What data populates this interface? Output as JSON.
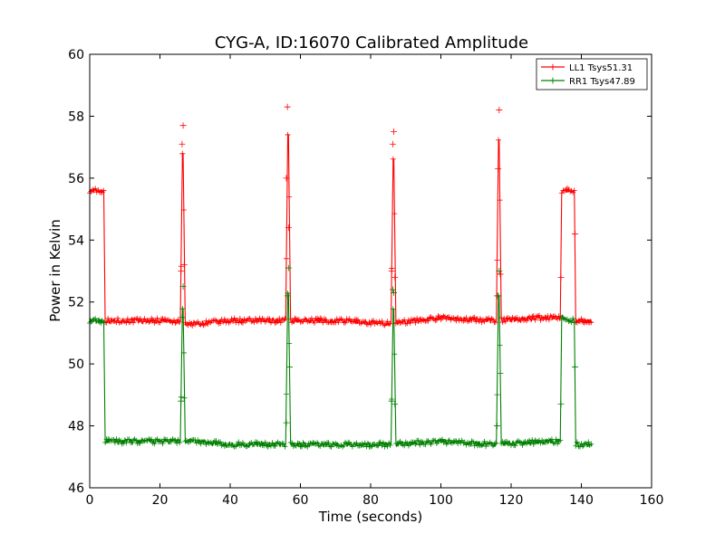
{
  "chart_data": {
    "type": "line",
    "title": "CYG-A, ID:16070 Calibrated Amplitude",
    "xlabel": "Time (seconds)",
    "ylabel": "Power in Kelvin",
    "xlim": [
      0,
      160
    ],
    "ylim": [
      46,
      60
    ],
    "xticks": [
      "0",
      "20",
      "40",
      "60",
      "80",
      "100",
      "120",
      "140",
      "160"
    ],
    "yticks": [
      "46",
      "48",
      "50",
      "52",
      "54",
      "56",
      "58",
      "60"
    ],
    "grid": false,
    "legend_position": "top-right",
    "marker": "+",
    "series": [
      {
        "name": "LL1 Tsys51.31",
        "color": "#ff0000",
        "baseline": [
          [
            0,
            55.6
          ],
          [
            4,
            55.6
          ],
          [
            4.4,
            51.4
          ],
          [
            20,
            51.4
          ],
          [
            30,
            51.3
          ],
          [
            40,
            51.4
          ],
          [
            55,
            51.4
          ],
          [
            70,
            51.4
          ],
          [
            85,
            51.3
          ],
          [
            100,
            51.5
          ],
          [
            115,
            51.4
          ],
          [
            130,
            51.5
          ],
          [
            134,
            51.5
          ],
          [
            134.4,
            55.6
          ],
          [
            138,
            55.6
          ],
          [
            138.4,
            51.4
          ],
          [
            143,
            51.4
          ]
        ],
        "peaks": [
          [
            26.5,
            57.7
          ],
          [
            56.5,
            58.4
          ],
          [
            86.5,
            57.5
          ],
          [
            116.5,
            58.2
          ]
        ],
        "markers": [
          [
            26.0,
            53.0
          ],
          [
            26.3,
            57.1
          ],
          [
            26.6,
            57.7
          ],
          [
            26.9,
            53.2
          ],
          [
            56.0,
            56.0
          ],
          [
            56.3,
            58.3
          ],
          [
            56.6,
            54.4
          ],
          [
            86.0,
            53.0
          ],
          [
            86.3,
            57.1
          ],
          [
            86.6,
            57.5
          ],
          [
            86.9,
            52.8
          ],
          [
            116.0,
            52.2
          ],
          [
            116.3,
            56.3
          ],
          [
            116.6,
            58.2
          ],
          [
            116.9,
            52.9
          ],
          [
            134.2,
            52.8
          ],
          [
            138.2,
            54.2
          ]
        ]
      },
      {
        "name": "RR1 Tsys47.89",
        "color": "#008000",
        "baseline": [
          [
            0,
            51.4
          ],
          [
            4,
            51.4
          ],
          [
            4.4,
            47.5
          ],
          [
            20,
            47.5
          ],
          [
            30,
            47.5
          ],
          [
            40,
            47.4
          ],
          [
            55,
            47.4
          ],
          [
            70,
            47.4
          ],
          [
            85,
            47.4
          ],
          [
            100,
            47.5
          ],
          [
            115,
            47.4
          ],
          [
            130,
            47.5
          ],
          [
            134,
            47.5
          ],
          [
            134.4,
            51.5
          ],
          [
            138,
            51.4
          ],
          [
            138.4,
            47.4
          ],
          [
            143,
            47.4
          ]
        ],
        "peaks": [
          [
            26.5,
            52.5
          ],
          [
            56.5,
            53.1
          ],
          [
            86.5,
            52.5
          ],
          [
            116.5,
            53.0
          ]
        ],
        "markers": [
          [
            26.0,
            48.8
          ],
          [
            26.3,
            51.5
          ],
          [
            26.6,
            52.5
          ],
          [
            26.9,
            48.9
          ],
          [
            56.0,
            48.1
          ],
          [
            56.3,
            52.2
          ],
          [
            56.6,
            53.1
          ],
          [
            56.9,
            49.9
          ],
          [
            86.0,
            48.8
          ],
          [
            86.3,
            52.4
          ],
          [
            86.6,
            52.3
          ],
          [
            86.9,
            48.7
          ],
          [
            116.0,
            48.0
          ],
          [
            116.3,
            52.2
          ],
          [
            116.6,
            53.0
          ],
          [
            116.9,
            49.7
          ],
          [
            134.2,
            48.7
          ],
          [
            138.2,
            49.9
          ]
        ]
      }
    ]
  }
}
